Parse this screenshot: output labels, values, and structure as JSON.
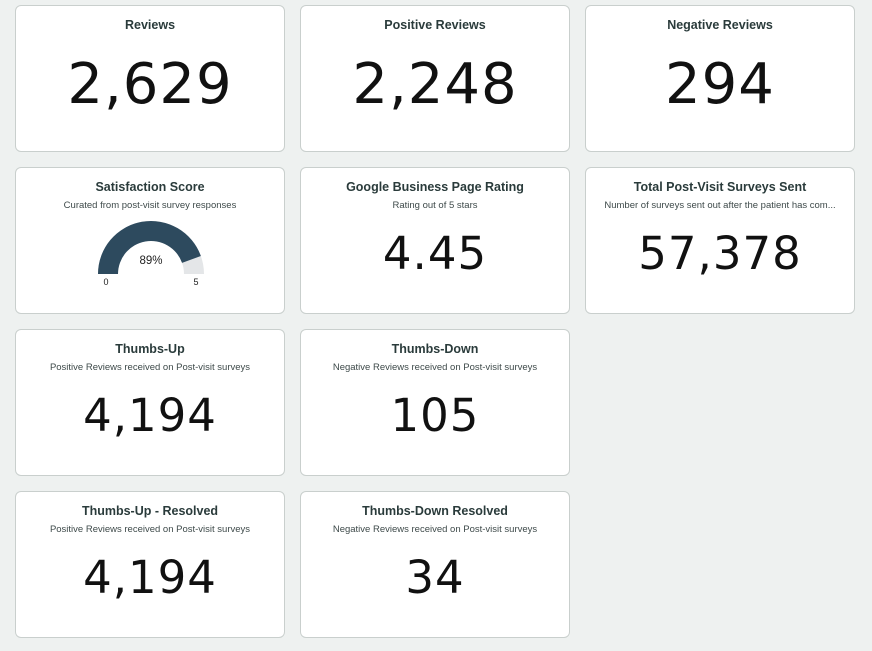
{
  "colors": {
    "page_background": "#eef1f0",
    "card_background": "#ffffff",
    "gauge_fill": "#2d4a5e",
    "gauge_track": "#e4e6e8"
  },
  "cards": {
    "reviews": {
      "title": "Reviews",
      "value": "2,629"
    },
    "positive_reviews": {
      "title": "Positive Reviews",
      "value": "2,248"
    },
    "negative_reviews": {
      "title": "Negative Reviews",
      "value": "294"
    },
    "satisfaction_score": {
      "title": "Satisfaction Score",
      "subtitle": "Curated from post-visit survey responses",
      "gauge": {
        "value_label": "89%",
        "fraction": 0.89,
        "min_label": "0",
        "max_label": "5"
      }
    },
    "google_rating": {
      "title": "Google Business Page Rating",
      "subtitle": "Rating out of 5 stars",
      "value": "4.45"
    },
    "total_surveys": {
      "title": "Total Post-Visit Surveys Sent",
      "subtitle": "Number of surveys sent out after the patient has com...",
      "value": "57,378"
    },
    "thumbs_up": {
      "title": "Thumbs-Up",
      "subtitle": "Positive Reviews received on Post-visit surveys",
      "value": "4,194"
    },
    "thumbs_down": {
      "title": "Thumbs-Down",
      "subtitle": "Negative Reviews received on Post-visit surveys",
      "value": "105"
    },
    "thumbs_up_resolved": {
      "title": "Thumbs-Up - Resolved",
      "subtitle": "Positive Reviews received on Post-visit surveys",
      "value": "4,194"
    },
    "thumbs_down_resolved": {
      "title": "Thumbs-Down Resolved",
      "subtitle": "Negative Reviews received on Post-visit surveys",
      "value": "34"
    }
  }
}
